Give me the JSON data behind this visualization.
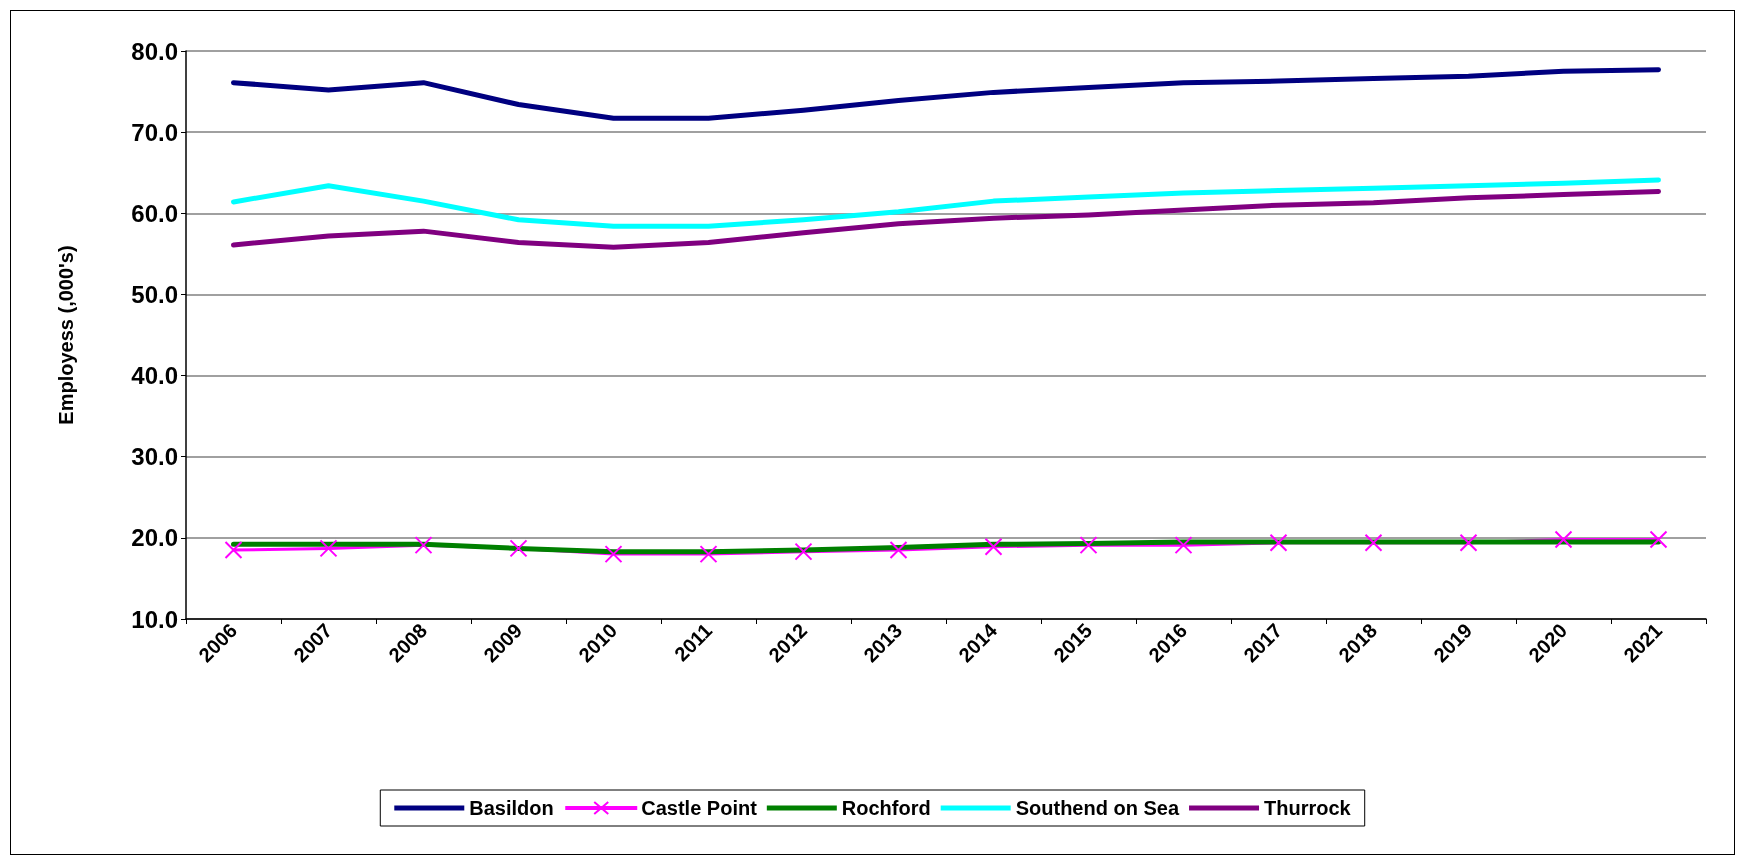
{
  "chart_data": {
    "type": "line",
    "ylabel": "Employess (,000's)",
    "categories": [
      "2006",
      "2007",
      "2008",
      "2009",
      "2010",
      "2011",
      "2012",
      "2013",
      "2014",
      "2015",
      "2016",
      "2017",
      "2018",
      "2019",
      "2020",
      "2021"
    ],
    "series": [
      {
        "name": "Basildon",
        "color": "#000080",
        "marker": "none",
        "values": [
          76.1,
          75.2,
          76.1,
          73.4,
          71.7,
          71.7,
          72.7,
          73.9,
          74.9,
          75.5,
          76.1,
          76.3,
          76.6,
          76.9,
          77.5,
          77.7
        ]
      },
      {
        "name": "Castle Point",
        "color": "#ff00ff",
        "marker": "cross",
        "values": [
          18.5,
          18.7,
          19.1,
          18.7,
          18.0,
          18.0,
          18.3,
          18.5,
          18.9,
          19.1,
          19.1,
          19.4,
          19.4,
          19.4,
          19.8,
          19.8
        ]
      },
      {
        "name": "Rochford",
        "color": "#008000",
        "marker": "none",
        "values": [
          19.2,
          19.2,
          19.2,
          18.7,
          18.3,
          18.3,
          18.5,
          18.8,
          19.2,
          19.3,
          19.5,
          19.5,
          19.5,
          19.5,
          19.5,
          19.5
        ]
      },
      {
        "name": "Southend on Sea",
        "color": "#00ffff",
        "marker": "none",
        "values": [
          61.4,
          63.4,
          61.5,
          59.2,
          58.4,
          58.4,
          59.2,
          60.2,
          61.5,
          62.0,
          62.5,
          62.8,
          63.1,
          63.4,
          63.7,
          64.1
        ]
      },
      {
        "name": "Thurrock",
        "color": "#800080",
        "marker": "none",
        "values": [
          56.1,
          57.2,
          57.8,
          56.4,
          55.8,
          56.4,
          57.6,
          58.7,
          59.4,
          59.8,
          60.4,
          61.0,
          61.3,
          61.9,
          62.3,
          62.7
        ]
      }
    ],
    "ylim": [
      10,
      80
    ],
    "yticks": [
      {
        "value": 10,
        "label": "10.0"
      },
      {
        "value": 20,
        "label": "20.0"
      },
      {
        "value": 30,
        "label": "30.0"
      },
      {
        "value": 40,
        "label": "40.0"
      },
      {
        "value": 50,
        "label": "50.0"
      },
      {
        "value": 60,
        "label": "60.0"
      },
      {
        "value": 70,
        "label": "70.0"
      },
      {
        "value": 80,
        "label": "80.0"
      }
    ],
    "grid": "y",
    "legend": "bottom",
    "line_style": "solid"
  }
}
